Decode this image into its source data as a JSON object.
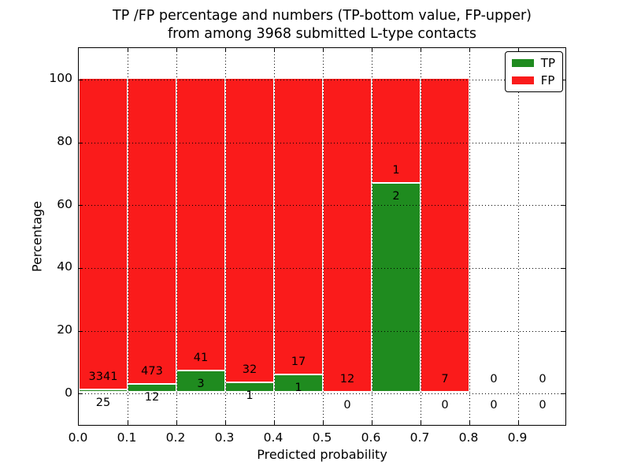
{
  "chart_data": {
    "type": "bar",
    "stacked": true,
    "normalized": "each bin stacked to 100%",
    "title_line1": "TP /FP percentage and numbers (TP-bottom value, FP-upper)",
    "title_line2": "from among 3968 submitted L-type contacts",
    "xlabel": "Predicted probability",
    "ylabel": "Percentage",
    "total_contacts": 3968,
    "xlim": [
      0.0,
      1.0
    ],
    "ylim": [
      -10.5,
      110
    ],
    "bin_width": 0.1,
    "grid": "dotted black, horizontal and vertical, drawn over bars",
    "legend_position": "upper right",
    "x_ticks": [
      0.0,
      0.1,
      0.2,
      0.3,
      0.4,
      0.5,
      0.6,
      0.7,
      0.8,
      0.9
    ],
    "x_tick_labels": [
      "0.0",
      "0.1",
      "0.2",
      "0.3",
      "0.4",
      "0.5",
      "0.6",
      "0.7",
      "0.8",
      "0.9"
    ],
    "y_ticks": [
      0,
      20,
      40,
      60,
      80,
      100
    ],
    "y_tick_labels": [
      "0",
      "20",
      "40",
      "60",
      "80",
      "100"
    ],
    "series": [
      {
        "name": "TP",
        "color": "#1f8b1f",
        "values": [
          25,
          12,
          3,
          1,
          1,
          0,
          2,
          0,
          0,
          0
        ]
      },
      {
        "name": "FP",
        "color": "#fa1b1b",
        "values": [
          3341,
          473,
          41,
          32,
          17,
          12,
          1,
          7,
          0,
          0
        ]
      }
    ],
    "tp_percent_of_bin": [
      0.74,
      2.47,
      6.82,
      3.03,
      5.56,
      0.0,
      66.67,
      0.0,
      null,
      null
    ],
    "annotation_rule": "FP count printed just above green segment top, TP count just below it; empty bins show 0 / 0"
  }
}
